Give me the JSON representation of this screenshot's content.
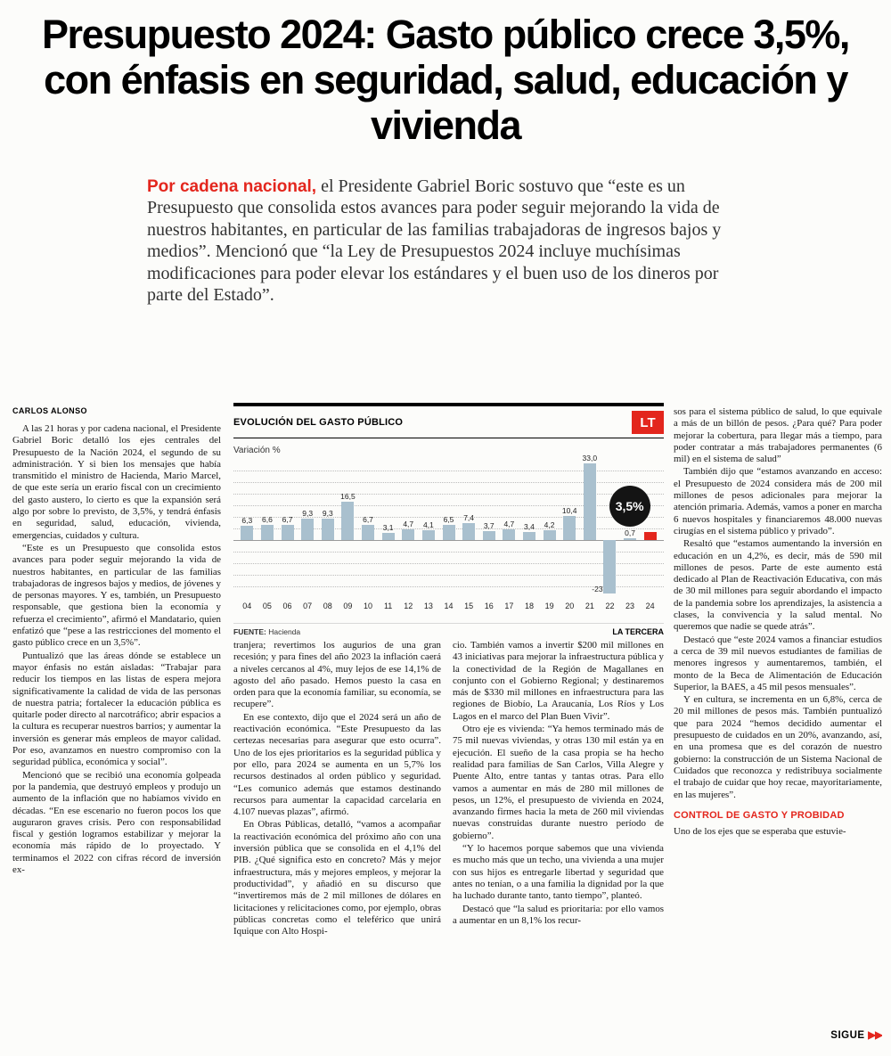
{
  "page": {
    "headline": "Presupuesto 2024: Gasto público crece 3,5%, con énfasis en seguridad, salud, educación y vivienda",
    "kicker": "Por cadena nacional,",
    "lede": " el Presidente Gabriel Boric sostuvo que “este es un Presupuesto que consolida estos avances para poder seguir mejorando la vida de nuestros habitantes, en particular de las familias trabajadoras de ingresos bajos y medios”. Mencionó que “la Ley de Presupuestos 2024 incluye muchísimas modificaciones para poder elevar los estándares y el buen uso de los dineros por parte del Estado”.",
    "byline": "CARLOS ALONSO",
    "subhead": "CONTROL DE GASTO Y PROBIDAD",
    "continues_label": "SIGUE",
    "continues_arrows": "▶▶",
    "colors": {
      "accent": "#e3261d",
      "paper": "#fcfcfa"
    }
  },
  "columns": {
    "col1": [
      "A las 21 horas y por cadena nacional, el Presidente Gabriel Boric detalló los ejes centrales del Presupuesto de la Nación 2024, el segundo de su administración. Y si bien los mensajes que había transmitido el ministro de Hacienda, Mario Marcel, de que este sería un erario fiscal con un crecimiento del gasto austero, lo cierto es que la expansión será algo por sobre lo previsto, de 3,5%, y tendrá énfasis en seguridad, salud, educación, vivienda, emergencias, cuidados y cultura.",
      "“Este es un Presupuesto que consolida estos avances para poder seguir mejorando la vida de nuestros habitantes, en particular de las familias trabajadoras de ingresos bajos y medios, de jóvenes y de personas mayores. Y es, también, un Presupuesto responsable, que gestiona bien la economía y refuerza el crecimiento”, afirmó el Mandatario, quien enfatizó que “pese a las restricciones del momento el gasto público crece en un 3,5%”.",
      "Puntualizó que las áreas dónde se establece un mayor énfasis no están aisladas: “Trabajar para reducir los tiempos en las listas de espera mejora significativamente la calidad de vida de las personas de nuestra patria; fortalecer la educación pública es quitarle poder directo al narcotráfico; abrir espacios a la cultura es recuperar nuestros barrios; y aumentar la inversión es generar más empleos de mayor calidad. Por eso, avanzamos en nuestro compromiso con la seguridad pública, económica y social”.",
      "Mencionó que se recibió una economía golpeada por la pandemia, que destruyó empleos y produjo un aumento de la inflación que no habíamos vivido en décadas. “En ese escenario no fueron pocos los que auguraron graves crisis. Pero con responsabilidad fiscal y gestión logramos estabilizar y mejorar la economía más rápido de lo proyectado. Y terminamos el 2022 con cifras récord de inversión ex-"
    ],
    "col2": [
      "tranjera; revertimos los augurios de una gran recesión; y para fines del año 2023 la inflación caerá a niveles cercanos al 4%, muy lejos de ese 14,1% de agosto del año pasado. Hemos puesto la casa en orden para que la economía familiar, su economía, se recupere”.",
      "En ese contexto, dijo que el 2024 será un año de reactivación económica. “Este Presupuesto da las certezas necesarias para asegurar que esto ocurra”. Uno de los ejes prioritarios es la seguridad pública y por ello, para 2024 se aumenta en un 5,7% los recursos destinados al orden público y seguridad. “Les comunico además que estamos destinando recursos para aumentar la capacidad carcelaria en 4.107 nuevas plazas”, afirmó.",
      "En Obras Públicas, detalló, “vamos a acompañar la reactivación económica del próximo año con una inversión pública que se consolida en el 4,1% del PIB. ¿Qué significa esto en concreto? Más y mejor infraestructura, más y mejores empleos, y mejorar la productividad”, y añadió en su discurso que “invertiremos más de 2 mil millones de dólares en licitaciones y relicitaciones como, por ejemplo, obras públicas concretas como el teleférico que unirá Iquique con Alto Hospi-"
    ],
    "col3": [
      "cio. También vamos a invertir $200 mil millones en 43 iniciativas para mejorar la infraestructura pública y la conectividad de la Región de Magallanes en conjunto con el Gobierno Regional; y destinaremos más de $330 mil millones en infraestructura para las regiones de Biobío, La Araucanía, Los Ríos y Los Lagos en el marco del Plan Buen Vivir”.",
      "Otro eje es vivienda: “Ya hemos terminado más de 75 mil nuevas viviendas, y otras 130 mil están ya en ejecución. El sueño de la casa propia se ha hecho realidad para familias de San Carlos, Villa Alegre y Puente Alto, entre tantas y tantas otras. Para ello vamos a aumentar en más de 280 mil millones de pesos, un 12%, el presupuesto de vivienda en 2024, avanzando firmes hacia la meta de 260 mil viviendas nuevas construidas durante nuestro período de gobierno”.",
      "“Y lo hacemos porque sabemos que una vivienda es mucho más que un techo, una vivienda a una mujer con sus hijos es entregarle libertad y seguridad que antes no tenían, o a una familia la dignidad por la que ha luchado durante tanto, tanto tiempo”, planteó.",
      "Destacó que “la salud es prioritaria: por ello vamos a aumentar en un 8,1% los recur-"
    ],
    "col4": [
      "sos para el sistema público de salud, lo que equivale a más de un billón de pesos. ¿Para qué? Para poder mejorar la cobertura, para llegar más a tiempo, para poder contratar a más trabajadores permanentes (6 mil) en el sistema de salud”",
      "También dijo que “estamos avanzando en acceso: el Presupuesto de 2024 considera más de 200 mil millones de pesos adicionales para mejorar la atención primaria. Además, vamos a poner en marcha 6 nuevos hospitales y financiaremos 48.000 nuevas cirugías en el sistema público y privado”.",
      "Resaltó que “estamos aumentando la inversión en educación en un 4,2%, es decir, más de 590 mil millones de pesos. Parte de este aumento está dedicado al Plan de Reactivación Educativa, con más de 30 mil millones para seguir abordando el impacto de la pandemia sobre los aprendizajes, la asistencia a clases, la convivencia y la salud mental. No queremos que nadie se quede atrás”.",
      "Destacó que “este 2024 vamos a financiar estudios a cerca de 39 mil nuevos estudiantes de familias de menores ingresos y aumentaremos, también, el monto de la Beca de Alimentación de Educación Superior, la BAES, a 45 mil pesos mensuales”.",
      "Y en cultura, se incrementa en un 6,8%, cerca de 20 mil millones de pesos más. También puntualizó que para 2024 “hemos decidido aumentar el presupuesto de cuidados en un 20%, avanzando, así, en una promesa que es del corazón de nuestro gobierno: la construcción de un Sistema Nacional de Cuidados que reconozca y redistribuya socialmente el trabajo de cuidar que hoy recae, mayoritariamente, en las mujeres”."
    ],
    "col4_after_subhead": "Uno de los ejes que se esperaba que estuvie-"
  },
  "chart": {
    "title": "EVOLUCIÓN DEL GASTO PÚBLICO",
    "logo": "LT",
    "unit": "Variación %",
    "source_label": "FUENTE:",
    "source_value": "Hacienda",
    "credit": "LA TERCERA",
    "badge_label": "3,5%",
    "colors": {
      "bar": "#a9c0ce",
      "highlight": "#e3261d",
      "badge_bg": "#141414"
    }
  },
  "chart_data": {
    "type": "bar",
    "title": "Evolución del gasto público",
    "ylabel": "Variación %",
    "categories": [
      "04",
      "05",
      "06",
      "07",
      "08",
      "09",
      "10",
      "11",
      "12",
      "13",
      "14",
      "15",
      "16",
      "17",
      "18",
      "19",
      "20",
      "21",
      "22",
      "23",
      "24"
    ],
    "values": [
      6.3,
      6.6,
      6.7,
      9.3,
      9.3,
      16.5,
      6.7,
      3.1,
      4.7,
      4.1,
      6.5,
      7.4,
      3.7,
      4.7,
      3.4,
      4.2,
      10.4,
      33.0,
      -23,
      0.7,
      3.5
    ],
    "value_labels": [
      "6,3",
      "6,6",
      "6,7",
      "9,3",
      "9,3",
      "16,5",
      "6,7",
      "3,1",
      "4,7",
      "4,1",
      "6,5",
      "7,4",
      "3,7",
      "4,7",
      "3,4",
      "4,2",
      "10,4",
      "33,0",
      "-23",
      "0,7",
      "3,5%"
    ],
    "highlight_index": 20,
    "ylim": [
      -25,
      35
    ],
    "gridlines_every": 5,
    "grid": true,
    "legend": false
  }
}
